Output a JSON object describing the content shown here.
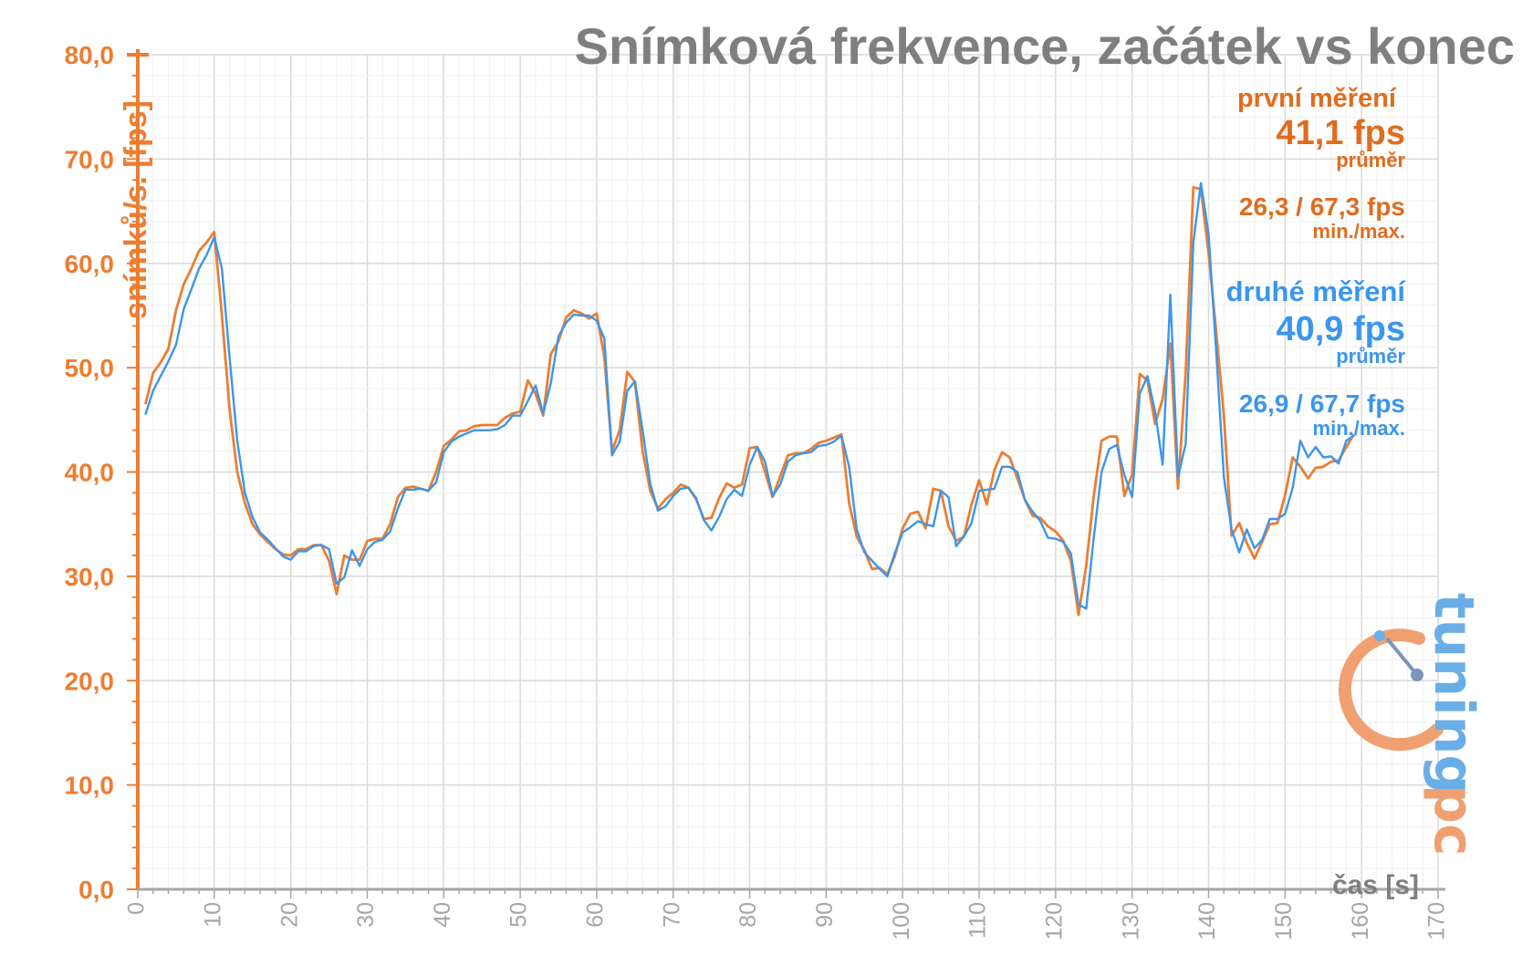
{
  "chart_data": {
    "type": "line",
    "title": "Snímková frekvence, začátek vs konec",
    "ylabel": "snímků/s. [fps]",
    "xlabel": "čas [s]",
    "xlim": [
      0,
      170
    ],
    "ylim": [
      0,
      80
    ],
    "y_ticks": [
      "0,0",
      "10,0",
      "20,0",
      "30,0",
      "40,0",
      "50,0",
      "60,0",
      "70,0",
      "80,0"
    ],
    "x_ticks": [
      "0",
      "10",
      "20",
      "30",
      "40",
      "50",
      "60",
      "70",
      "80",
      "90",
      "100",
      "110",
      "120",
      "130",
      "140",
      "150",
      "160",
      "170"
    ],
    "grid": true,
    "series": [
      {
        "name": "první měření",
        "color": "#ed7d31",
        "values": [
          46.5,
          49.5,
          50.5,
          51.8,
          55.5,
          58.0,
          59.5,
          61.2,
          62.0,
          63.0,
          55.0,
          46.0,
          40.0,
          37.0,
          35.0,
          34.0,
          33.3,
          32.6,
          32.1,
          32.0,
          32.6,
          32.6,
          33.0,
          33.0,
          31.5,
          28.3,
          32.0,
          31.6,
          31.6,
          33.4,
          33.6,
          33.6,
          35.0,
          37.6,
          38.5,
          38.6,
          38.4,
          38.2,
          40.0,
          42.5,
          43.1,
          43.9,
          44.0,
          44.4,
          44.5,
          44.5,
          44.5,
          45.2,
          45.6,
          45.8,
          48.8,
          47.5,
          45.4,
          51.3,
          52.5,
          54.8,
          55.5,
          55.2,
          54.7,
          55.2,
          51.0,
          42.0,
          44.0,
          49.6,
          48.6,
          42.0,
          38.2,
          36.5,
          37.4,
          38.0,
          38.8,
          38.5,
          37.4,
          35.5,
          35.6,
          37.5,
          38.9,
          38.5,
          38.8,
          42.3,
          42.4,
          40.0,
          37.6,
          39.6,
          41.6,
          41.8,
          41.8,
          42.2,
          42.8,
          43.0,
          43.3,
          43.6,
          37.0,
          33.8,
          32.5,
          30.7,
          30.8,
          30.2,
          32.0,
          34.6,
          36.0,
          36.2,
          34.6,
          38.4,
          38.2,
          34.8,
          33.4,
          33.8,
          36.9,
          39.2,
          36.9,
          40.2,
          41.9,
          41.4,
          39.4,
          37.3,
          35.8,
          35.6,
          34.8,
          34.3,
          33.4,
          31.5,
          26.3,
          31.0,
          37.8,
          43.0,
          43.4,
          43.4,
          37.7,
          39.8,
          49.4,
          48.8,
          44.6,
          47.0,
          52.3,
          38.4,
          49.5,
          67.3,
          67.1,
          61.0,
          53.4,
          45.4,
          33.9,
          35.1,
          33.2,
          31.7,
          33.3,
          35.0,
          35.1,
          37.8,
          41.4,
          40.5,
          39.4,
          40.4,
          40.5,
          41.0,
          41.1,
          42.4,
          43.6
        ]
      },
      {
        "name": "druhé měření",
        "color": "#3a96ee",
        "values": [
          45.5,
          47.8,
          49.2,
          50.6,
          52.2,
          55.6,
          57.5,
          59.5,
          60.8,
          62.5,
          59.5,
          51.0,
          43.0,
          38.0,
          35.7,
          34.2,
          33.5,
          32.7,
          31.9,
          31.6,
          32.4,
          32.4,
          32.9,
          33.0,
          32.6,
          29.3,
          29.9,
          32.5,
          31.0,
          32.6,
          33.3,
          33.5,
          34.3,
          36.5,
          38.3,
          38.3,
          38.4,
          38.2,
          39.0,
          41.9,
          42.9,
          43.4,
          43.7,
          44.0,
          44.0,
          44.0,
          44.1,
          44.5,
          45.4,
          45.4,
          46.8,
          48.3,
          45.6,
          48.5,
          53.0,
          54.3,
          55.1,
          55.0,
          55.0,
          54.5,
          52.8,
          41.6,
          42.9,
          47.8,
          48.7,
          44.0,
          38.9,
          36.3,
          36.7,
          37.7,
          38.4,
          38.5,
          37.5,
          35.4,
          34.4,
          35.7,
          37.4,
          38.3,
          37.7,
          40.7,
          42.4,
          41.0,
          37.7,
          38.8,
          41.0,
          41.6,
          41.8,
          41.9,
          42.5,
          42.6,
          42.9,
          43.5,
          40.5,
          34.5,
          32.3,
          31.5,
          30.7,
          30.0,
          32.3,
          34.2,
          34.7,
          35.3,
          35.0,
          34.8,
          38.2,
          37.6,
          32.9,
          33.8,
          35.1,
          38.2,
          38.3,
          38.4,
          40.5,
          40.5,
          40.0,
          37.3,
          36.2,
          35.3,
          33.7,
          33.6,
          33.3,
          32.2,
          27.3,
          26.9,
          33.8,
          40.0,
          42.2,
          42.6,
          39.7,
          37.6,
          47.5,
          49.2,
          45.8,
          40.7,
          57.0,
          39.5,
          42.7,
          62.0,
          67.7,
          62.8,
          51.5,
          39.5,
          34.5,
          32.3,
          34.5,
          32.7,
          33.5,
          35.5,
          35.5,
          36.0,
          38.5,
          43.0,
          41.4,
          42.4,
          41.4,
          41.5,
          40.8,
          43.0,
          43.5
        ]
      }
    ],
    "annotations": {
      "first": {
        "name": "první měření",
        "avg": "41,1 fps",
        "avg_label": "průměr",
        "minmax": "26,3 / 67,3 fps",
        "minmax_label": "min./max."
      },
      "second": {
        "name": "druhé měření",
        "avg": "40,9 fps",
        "avg_label": "průměr",
        "minmax": "26,9 / 67,7 fps",
        "minmax_label": "min./max."
      }
    }
  },
  "logo": {
    "text": "pctuning",
    "colors": {
      "pc": "#f0a070",
      "tuning": "#6aaee8"
    }
  }
}
